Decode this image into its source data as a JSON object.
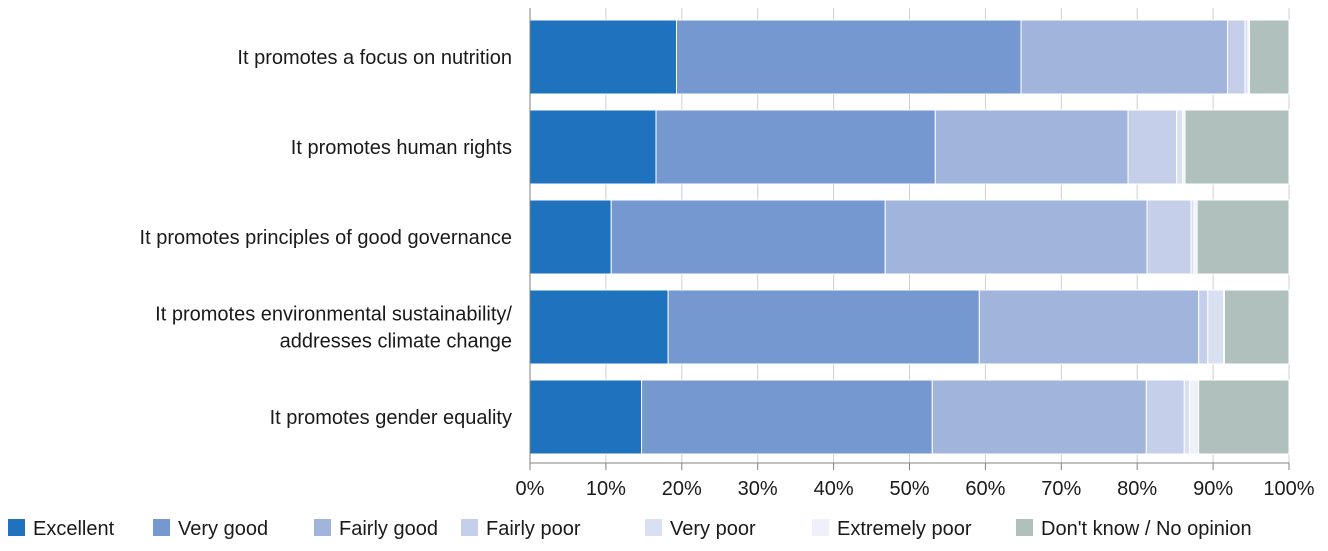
{
  "chart_data": {
    "type": "bar",
    "orientation": "horizontal",
    "stacked": true,
    "categories": [
      [
        "It promotes a focus on nutrition"
      ],
      [
        "It promotes human rights"
      ],
      [
        "It promotes principles of good governance"
      ],
      [
        "It promotes environmental sustainability/",
        "addresses climate change"
      ],
      [
        "It promotes gender equality"
      ]
    ],
    "series": [
      {
        "name": "Excellent",
        "color": "#1f72bd",
        "values": [
          19.3,
          16.6,
          10.7,
          18.2,
          14.7
        ]
      },
      {
        "name": "Very good",
        "color": "#7698d0",
        "values": [
          45.4,
          36.8,
          36.1,
          41.0,
          38.3
        ]
      },
      {
        "name": "Fairly good",
        "color": "#a1b4dc",
        "values": [
          27.2,
          25.4,
          34.5,
          28.9,
          28.2
        ]
      },
      {
        "name": "Fairly poor",
        "color": "#c5cfea",
        "values": [
          2.3,
          6.4,
          5.8,
          1.2,
          5.0
        ]
      },
      {
        "name": "Very poor",
        "color": "#d9e0f2",
        "values": [
          0.4,
          0.8,
          0.4,
          2.1,
          0.7
        ]
      },
      {
        "name": "Extremely poor",
        "color": "#eef1fa",
        "values": [
          0.2,
          0.3,
          0.4,
          0.1,
          1.2
        ]
      },
      {
        "name": "Don't know / No opinion",
        "color": "#afc0bd",
        "values": [
          5.2,
          13.7,
          12.1,
          8.5,
          11.9
        ]
      }
    ],
    "x_ticks": [
      "0%",
      "10%",
      "20%",
      "30%",
      "40%",
      "50%",
      "60%",
      "70%",
      "80%",
      "90%",
      "100%"
    ],
    "xlim": [
      0,
      100
    ],
    "grid": true,
    "legend_position": "bottom"
  }
}
